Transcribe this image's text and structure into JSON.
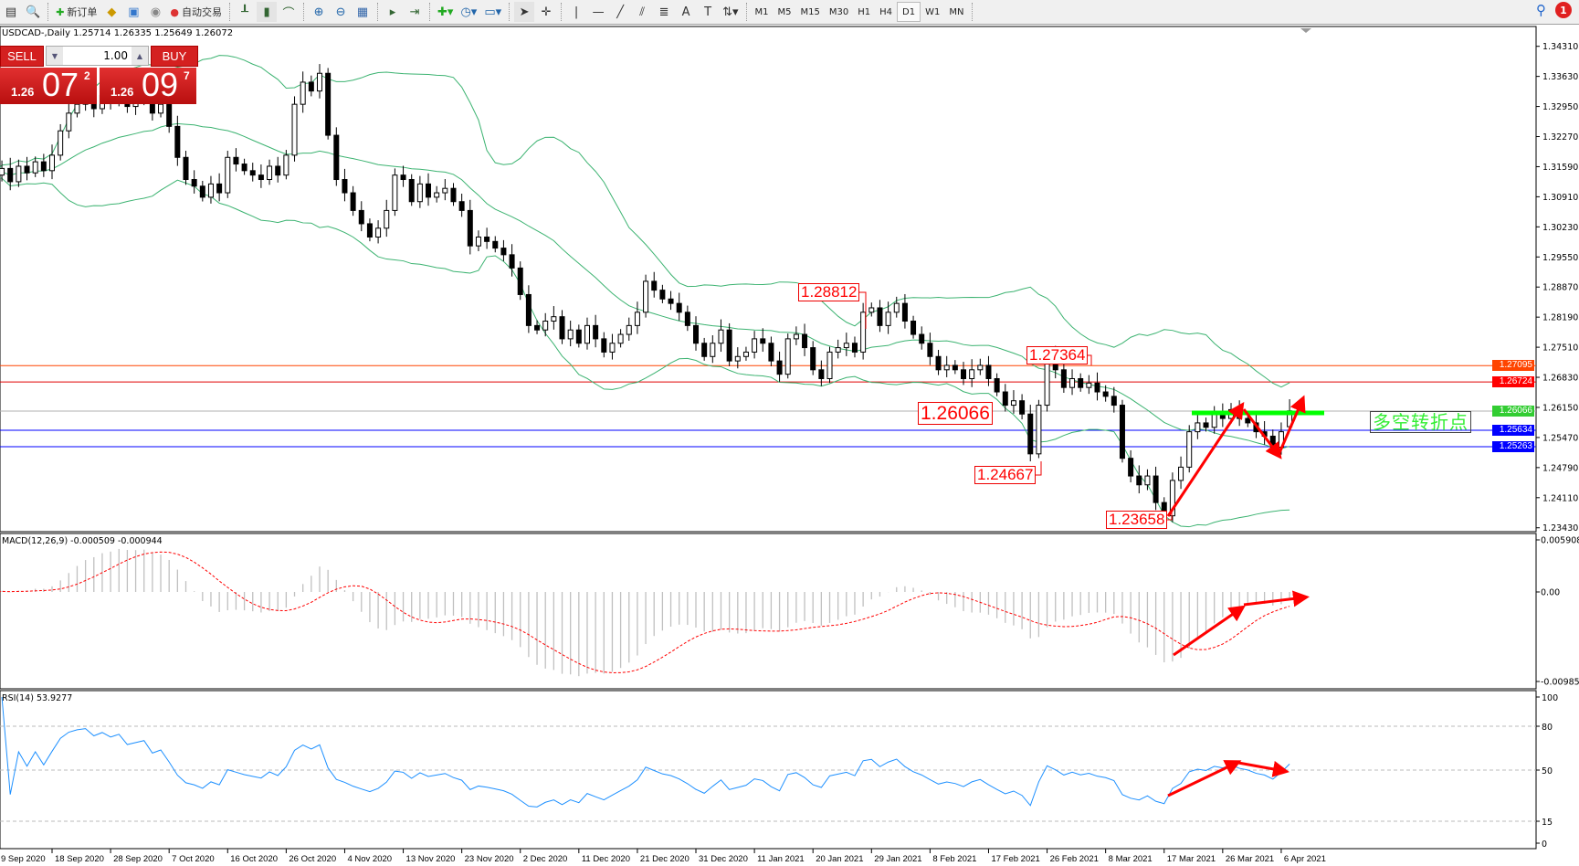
{
  "toolbar": {
    "new_order": "新订单",
    "auto_trading": "自动交易",
    "timeframes": [
      "M1",
      "M5",
      "M15",
      "M30",
      "H1",
      "H4",
      "D1",
      "W1",
      "MN"
    ],
    "active_timeframe": "D1",
    "notification_count": "1"
  },
  "chart": {
    "title": "USDCAD-,Daily  1.25714 1.26335 1.25649 1.26072",
    "symbol": "USDCAD-",
    "period": "Daily",
    "last_ohlc": {
      "open": 1.25714,
      "high": 1.26335,
      "low": 1.25649,
      "close": 1.26072
    }
  },
  "one_click": {
    "sell_label": "SELL",
    "buy_label": "BUY",
    "lot": "1.00",
    "sell_prefix": "1.26",
    "sell_big": "07",
    "sell_sup": "2",
    "buy_prefix": "1.26",
    "buy_big": "09",
    "buy_sup": "7"
  },
  "price_axis": {
    "ticks": [
      "1.34310",
      "1.33630",
      "1.32950",
      "1.32270",
      "1.31590",
      "1.30910",
      "1.30230",
      "1.29550",
      "1.28870",
      "1.28190",
      "1.27510",
      "1.26830",
      "1.26150",
      "1.25470",
      "1.24790",
      "1.24110",
      "1.23430"
    ]
  },
  "levels": [
    {
      "price": "1.27095",
      "color": "#ff4500",
      "label_bg": "#ff4500"
    },
    {
      "price": "1.26724",
      "color": "#e00000",
      "label_bg": "#ff0000"
    },
    {
      "price": "1.26066",
      "color": "#b0b0b0",
      "label_bg": "#32cd32"
    },
    {
      "price": "1.25634",
      "color": "#0000ff",
      "label_bg": "#0000ff"
    },
    {
      "price": "1.25263",
      "color": "#0000ff",
      "label_bg": "#0000ff"
    }
  ],
  "annotations": [
    {
      "text": "1.28812"
    },
    {
      "text": "1.27364"
    },
    {
      "text": "1.26066"
    },
    {
      "text": "1.24667"
    },
    {
      "text": "1.23658"
    }
  ],
  "turning_point_text": "多空转折点",
  "colors": {
    "bands": "#3cb371",
    "macd_hist": "#c0c0c0",
    "macd_signal": "#ff0000",
    "rsi": "#1e90ff",
    "arrow": "#ff0000",
    "turn_line": "#00ff00"
  },
  "macd": {
    "label": "MACD(12,26,9) -0.000509 -0.000944",
    "ticks": [
      "0.005908",
      "0.00",
      "-0.009851"
    ]
  },
  "rsi": {
    "label": "RSI(14) 53.9277",
    "ticks": [
      "100",
      "80",
      "50",
      "15",
      "0"
    ]
  },
  "chart_data": {
    "type": "candlestick",
    "indicators": [
      "Bollinger Bands",
      "MACD(12,26,9)",
      "RSI(14)"
    ],
    "date_labels": [
      "9 Sep 2020",
      "18 Sep 2020",
      "28 Sep 2020",
      "7 Oct 2020",
      "16 Oct 2020",
      "26 Oct 2020",
      "4 Nov 2020",
      "13 Nov 2020",
      "23 Nov 2020",
      "2 Dec 2020",
      "11 Dec 2020",
      "21 Dec 2020",
      "31 Dec 2020",
      "11 Jan 2021",
      "20 Jan 2021",
      "29 Jan 2021",
      "8 Feb 2021",
      "17 Feb 2021",
      "26 Feb 2021",
      "8 Mar 2021",
      "17 Mar 2021",
      "26 Mar 2021",
      "6 Apr 2021"
    ],
    "ylim": [
      1.2343,
      1.3431
    ],
    "closes": [
      1.314,
      1.3155,
      1.3125,
      1.316,
      1.3145,
      1.317,
      1.315,
      1.3185,
      1.324,
      1.328,
      1.33,
      1.331,
      1.329,
      1.332,
      1.3305,
      1.333,
      1.3295,
      1.331,
      1.3325,
      1.328,
      1.33,
      1.325,
      1.318,
      1.313,
      1.3115,
      1.309,
      1.312,
      1.31,
      1.318,
      1.3165,
      1.315,
      1.314,
      1.313,
      1.316,
      1.314,
      1.3185,
      1.33,
      1.335,
      1.333,
      1.337,
      1.323,
      1.313,
      1.31,
      1.306,
      1.303,
      1.3,
      1.302,
      1.306,
      1.314,
      1.313,
      1.308,
      1.312,
      1.309,
      1.31,
      1.311,
      1.308,
      1.306,
      1.298,
      1.3,
      1.299,
      1.2975,
      1.296,
      1.293,
      1.287,
      1.28,
      1.279,
      1.281,
      1.282,
      1.277,
      1.279,
      1.276,
      1.28,
      1.277,
      1.274,
      1.276,
      1.278,
      1.28,
      1.283,
      1.29,
      1.288,
      1.286,
      1.285,
      1.283,
      1.28,
      1.276,
      1.273,
      1.276,
      1.279,
      1.272,
      1.273,
      1.274,
      1.277,
      1.276,
      1.272,
      1.269,
      1.277,
      1.278,
      1.275,
      1.27,
      1.268,
      1.274,
      1.275,
      1.276,
      1.274,
      1.283,
      1.284,
      1.28,
      1.283,
      1.285,
      1.281,
      1.278,
      1.276,
      1.273,
      1.27,
      1.271,
      1.27,
      1.268,
      1.27,
      1.271,
      1.268,
      1.265,
      1.262,
      1.263,
      1.26,
      1.251,
      1.262,
      1.273,
      1.27,
      1.266,
      1.268,
      1.266,
      1.267,
      1.265,
      1.264,
      1.262,
      1.25,
      1.246,
      1.244,
      1.246,
      1.24,
      1.237,
      1.245,
      1.248,
      1.256,
      1.258,
      1.257,
      1.26,
      1.259,
      1.261,
      1.259,
      1.258,
      1.256,
      1.255,
      1.2525,
      1.256,
      1.26072
    ]
  }
}
